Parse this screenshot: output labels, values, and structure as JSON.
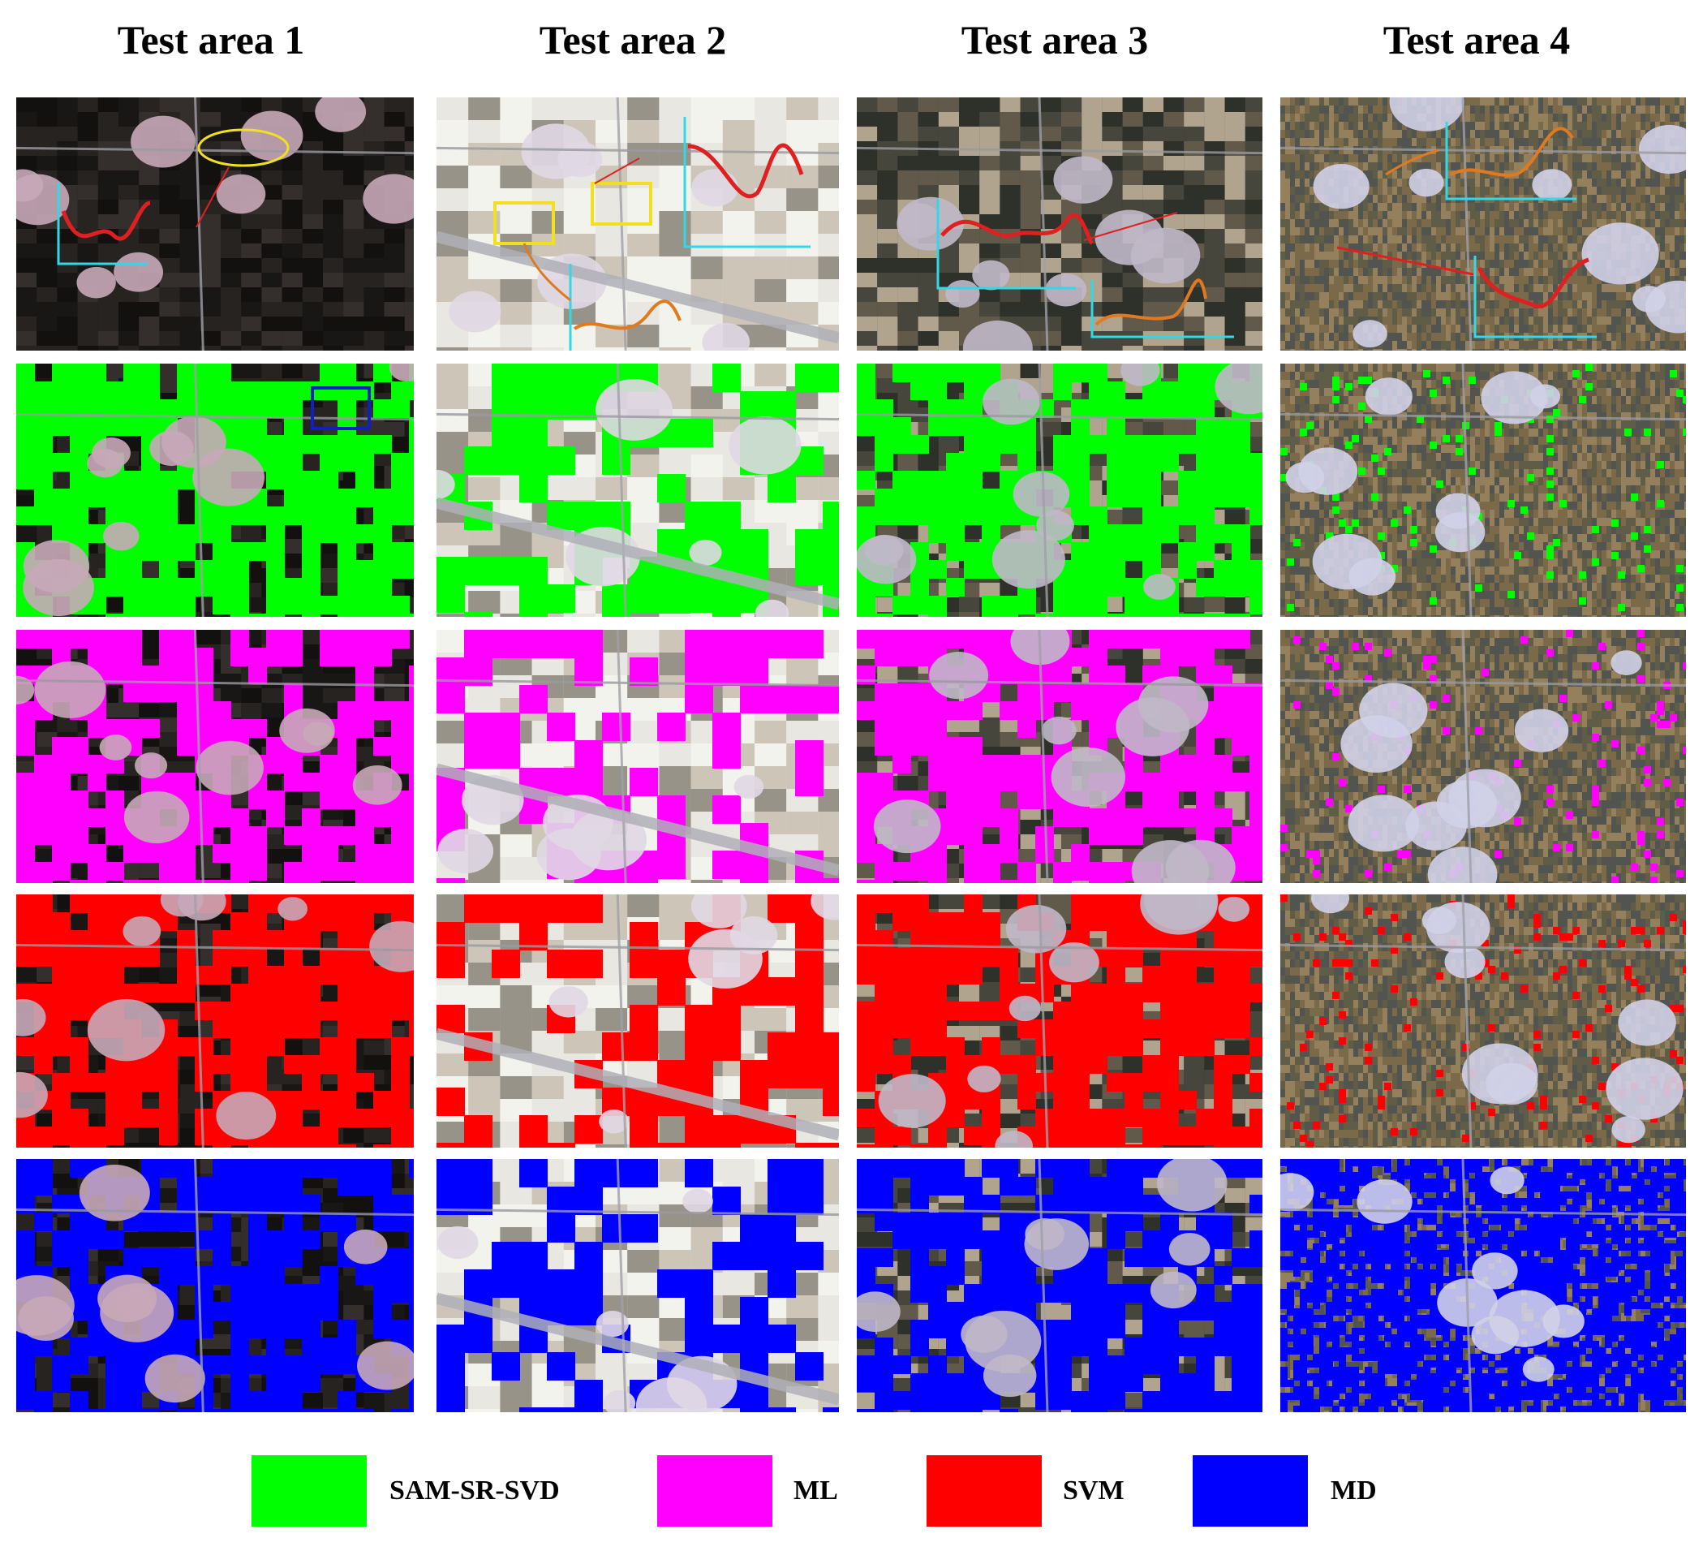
{
  "columns": [
    {
      "title": "Test area 1"
    },
    {
      "title": "Test area 2"
    },
    {
      "title": "Test area 3"
    },
    {
      "title": "Test area 4"
    }
  ],
  "rows": [
    {
      "key": "original"
    },
    {
      "key": "SAM-SR-SVD",
      "color": "#00ff00"
    },
    {
      "key": "ML",
      "color": "#ff00ff"
    },
    {
      "key": "SVM",
      "color": "#ff0000"
    },
    {
      "key": "MD",
      "color": "#0000ff"
    }
  ],
  "legend": [
    {
      "label": "SAM-SR-SVD",
      "color": "#00ff00"
    },
    {
      "label": "ML",
      "color": "#ff00ff"
    },
    {
      "label": "SVM",
      "color": "#ff0000"
    },
    {
      "label": "MD",
      "color": "#0000ff"
    }
  ],
  "area_colors": [
    "#1e1c1a",
    "#d8d4cc",
    "#3a3a32",
    "#8a7a5a"
  ],
  "annotation_colors": {
    "curve_red": "#e02020",
    "curve_orange": "#e07a20",
    "axis": "#30d8e8",
    "box_yellow": "#f0e020",
    "box_blue": "#1020c0"
  }
}
